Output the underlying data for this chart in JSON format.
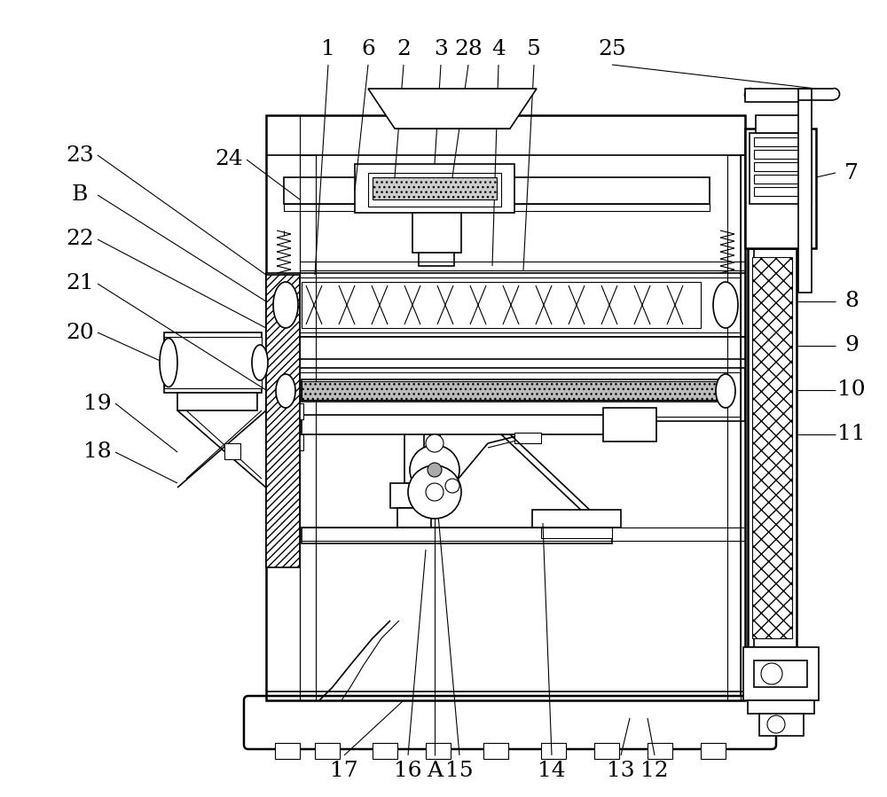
{
  "bg_color": "#ffffff",
  "lc": "#000000",
  "fig_width": 10.0,
  "fig_height": 8.99,
  "dpi": 100
}
